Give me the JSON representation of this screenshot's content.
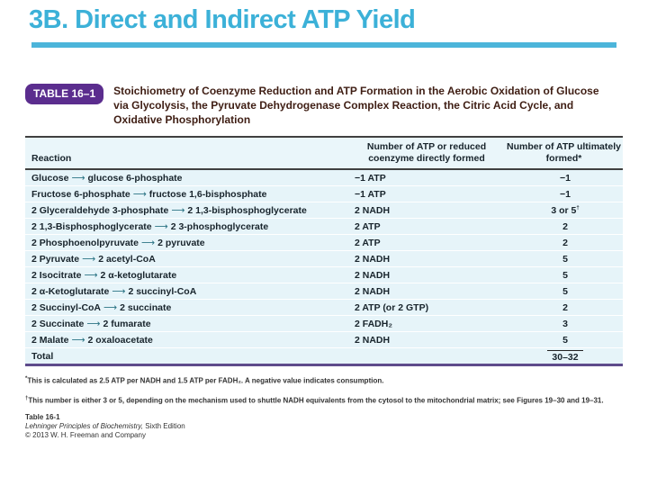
{
  "slide_title": "3B. Direct and Indirect ATP Yield",
  "colors": {
    "accent_cyan": "#3cb1d8",
    "badge_purple": "#5b2d8e",
    "caption_maroon": "#3f1e14",
    "row_background": "#e6f4f9",
    "bottom_rule_purple": "#5e4b8b"
  },
  "figure": {
    "badge_label": "TABLE 16–1",
    "caption": "Stoichiometry of Coenzyme Reduction and ATP Formation in the Aerobic Oxidation of Glucose via Glycolysis, the Pyruvate Dehydrogenase Complex Reaction, the Citric Acid Cycle, and Oxidative Phosphorylation",
    "arrow_glyph": "⟶",
    "columns": {
      "reaction": "Reaction",
      "direct": "Number of ATP or reduced coenzyme directly formed",
      "ultimate": "Number of ATP ultimately formed*"
    },
    "rows": [
      {
        "from": "Glucose",
        "to": "glucose 6-phosphate",
        "direct": "−1 ATP",
        "ultimate": "−1"
      },
      {
        "from": "Fructose 6-phosphate",
        "to": "fructose 1,6-bisphosphate",
        "direct": "−1 ATP",
        "ultimate": "−1"
      },
      {
        "from": "2 Glyceraldehyde 3-phosphate",
        "to": "2 1,3-bisphosphoglycerate",
        "direct": "2 NADH",
        "ultimate": "3 or 5",
        "ultimate_sup": "†"
      },
      {
        "from": "2 1,3-Bisphosphoglycerate",
        "to": "2 3-phosphoglycerate",
        "direct": "2 ATP",
        "ultimate": "2"
      },
      {
        "from": "2 Phosphoenolpyruvate",
        "to": "2 pyruvate",
        "direct": "2 ATP",
        "ultimate": "2"
      },
      {
        "from": "2 Pyruvate",
        "to": "2 acetyl-CoA",
        "direct": "2 NADH",
        "ultimate": "5"
      },
      {
        "from": "2 Isocitrate",
        "to": "2 α-ketoglutarate",
        "direct": "2 NADH",
        "ultimate": "5"
      },
      {
        "from": "2 α-Ketoglutarate",
        "to": "2 succinyl-CoA",
        "direct": "2 NADH",
        "ultimate": "5"
      },
      {
        "from": "2 Succinyl-CoA",
        "to": "2 succinate",
        "direct": "2 ATP (or 2 GTP)",
        "ultimate": "2"
      },
      {
        "from": "2 Succinate",
        "to": "2 fumarate",
        "direct": "2 FADH₂",
        "ultimate": "3"
      },
      {
        "from": "2 Malate",
        "to": "2 oxaloacetate",
        "direct": "2 NADH",
        "ultimate": "5"
      }
    ],
    "total": {
      "label": "Total",
      "value": "30–32"
    },
    "footnotes": [
      {
        "marker": "*",
        "text": "This is calculated as 2.5 ATP per NADH and 1.5 ATP per FADH₂. A negative value indicates consumption."
      },
      {
        "marker": "†",
        "text": "This number is either 3 or 5, depending on the mechanism used to shuttle NADH equivalents from the cytosol to the mitochondrial matrix; see Figures 19–30 and 19–31."
      }
    ],
    "credits": {
      "line1": "Table 16-1",
      "line2_italic": "Lehninger Principles of Biochemistry,",
      "line2_rest": " Sixth Edition",
      "line3": "© 2013 W. H. Freeman and Company"
    }
  }
}
